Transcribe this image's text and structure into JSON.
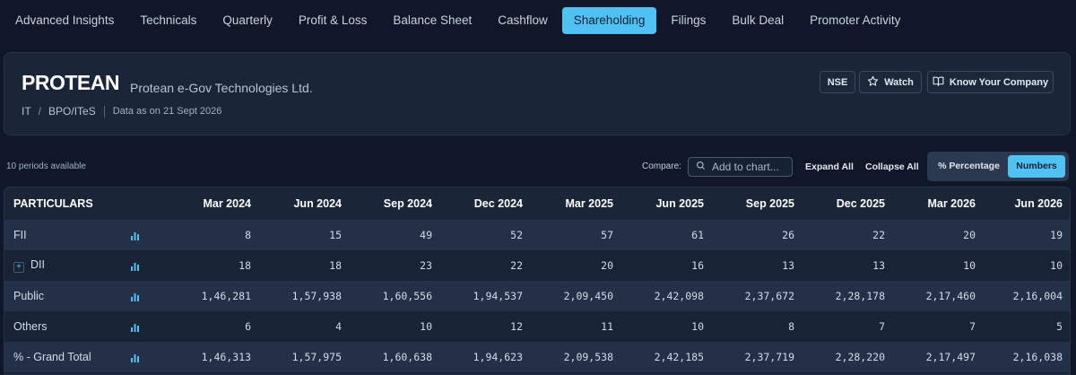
{
  "tabs": [
    {
      "label": "Advanced Insights",
      "active": false
    },
    {
      "label": "Technicals",
      "active": false
    },
    {
      "label": "Quarterly",
      "active": false
    },
    {
      "label": "Profit & Loss",
      "active": false
    },
    {
      "label": "Balance Sheet",
      "active": false
    },
    {
      "label": "Cashflow",
      "active": false
    },
    {
      "label": "Shareholding",
      "active": true
    },
    {
      "label": "Filings",
      "active": false
    },
    {
      "label": "Bulk Deal",
      "active": false
    },
    {
      "label": "Promoter Activity",
      "active": false
    }
  ],
  "header": {
    "ticker": "PROTEAN",
    "company_name": "Protean e-Gov Technologies Ltd.",
    "sector": "IT",
    "breadcrumb_sep": "/",
    "industry": "BPO/ITeS",
    "data_as_of": "Data as on 21 Sept 2026",
    "exchange_label": "NSE",
    "watch_label": "Watch",
    "kyc_label": "Know Your Company"
  },
  "controls": {
    "periods_text": "10 periods available",
    "compare_label": "Compare:",
    "compare_placeholder": "Add to chart...",
    "expand_all": "Expand All",
    "collapse_all": "Collapse All",
    "toggle_percentage": "% Percentage",
    "toggle_numbers": "Numbers",
    "selected_toggle": "Numbers"
  },
  "table": {
    "first_header": "PARTICULARS",
    "periods": [
      "Mar 2024",
      "Jun 2024",
      "Sep 2024",
      "Dec 2024",
      "Mar 2025",
      "Jun 2025",
      "Sep 2025",
      "Dec 2025",
      "Mar 2026",
      "Jun 2026"
    ],
    "rows": [
      {
        "name": "FII",
        "expandable": false,
        "chart_icon": true,
        "values": [
          "8",
          "15",
          "49",
          "52",
          "57",
          "61",
          "26",
          "22",
          "20",
          "19"
        ]
      },
      {
        "name": "DII",
        "expandable": true,
        "chart_icon": true,
        "values": [
          "18",
          "18",
          "23",
          "22",
          "20",
          "16",
          "13",
          "13",
          "10",
          "10"
        ]
      },
      {
        "name": "Public",
        "expandable": false,
        "chart_icon": true,
        "values": [
          "1,46,281",
          "1,57,938",
          "1,60,556",
          "1,94,537",
          "2,09,450",
          "2,42,098",
          "2,37,672",
          "2,28,178",
          "2,17,460",
          "2,16,004"
        ]
      },
      {
        "name": "Others",
        "expandable": false,
        "chart_icon": true,
        "values": [
          "6",
          "4",
          "10",
          "12",
          "11",
          "10",
          "8",
          "7",
          "7",
          "5"
        ]
      },
      {
        "name": "% - Grand Total",
        "expandable": false,
        "chart_icon": true,
        "values": [
          "1,46,313",
          "1,57,975",
          "1,60,638",
          "1,94,623",
          "2,09,538",
          "2,42,185",
          "2,37,719",
          "2,28,220",
          "2,17,497",
          "2,16,038"
        ]
      }
    ]
  },
  "colors": {
    "background": "#0f1728",
    "accent": "#4fc1f2",
    "chart_icon": "#4fc1f2"
  },
  "icons": {
    "watch": "star-icon",
    "kyc": "book-icon",
    "compare": "search-icon",
    "row_chart": "bar-chart-icon",
    "expand": "plus-icon"
  }
}
